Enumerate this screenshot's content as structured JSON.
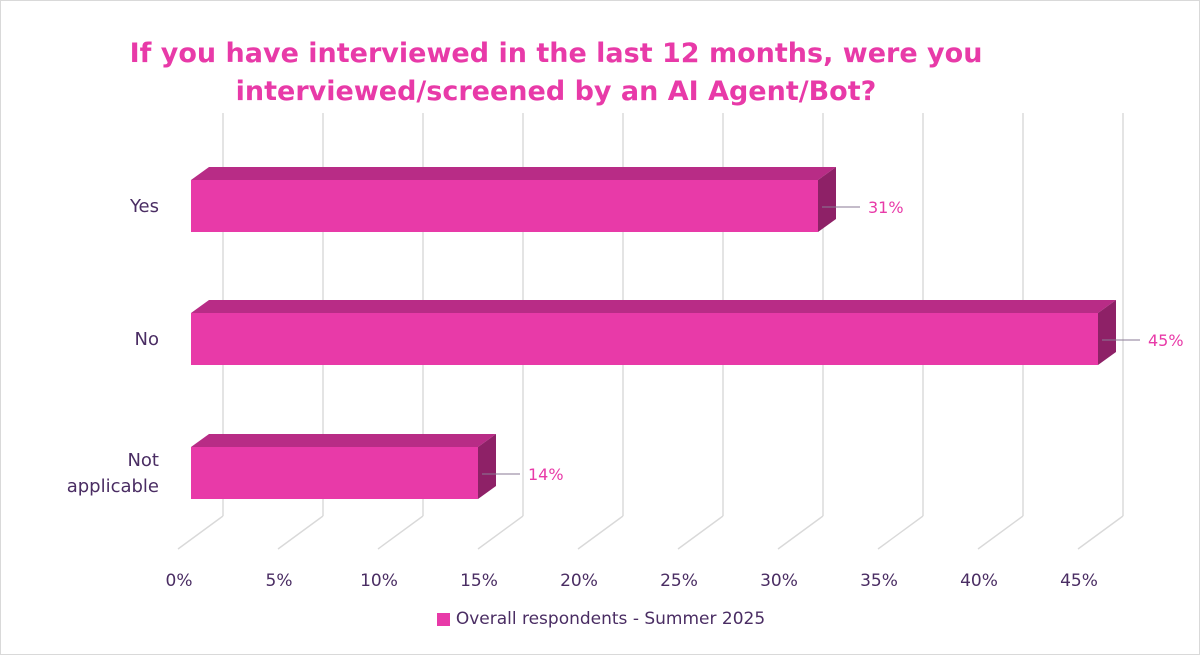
{
  "chart_data": {
    "type": "bar",
    "orientation": "horizontal",
    "title": "If you have interviewed in the last 12 months, were you interviewed/screened by an AI Agent/Bot?",
    "categories": [
      "Yes",
      "No",
      "Not applicable"
    ],
    "series": [
      {
        "name": "Overall respondents - Summer 2025",
        "values": [
          31,
          45,
          14
        ],
        "labels": [
          "31%",
          "45%",
          "14%"
        ]
      }
    ],
    "xticks": [
      "0%",
      "5%",
      "10%",
      "15%",
      "20%",
      "25%",
      "30%",
      "35%",
      "40%",
      "45%"
    ],
    "xlim": [
      0,
      45
    ],
    "grid": true,
    "legend": "bottom",
    "colors": {
      "bar_front": "#e83aa8",
      "bar_top": "#b82c86",
      "bar_side": "#8e2167",
      "title": "#e83aa8",
      "axis_text": "#4a2d63",
      "data_label": "#e83aa8",
      "gridline": "#d9d9d9"
    }
  }
}
